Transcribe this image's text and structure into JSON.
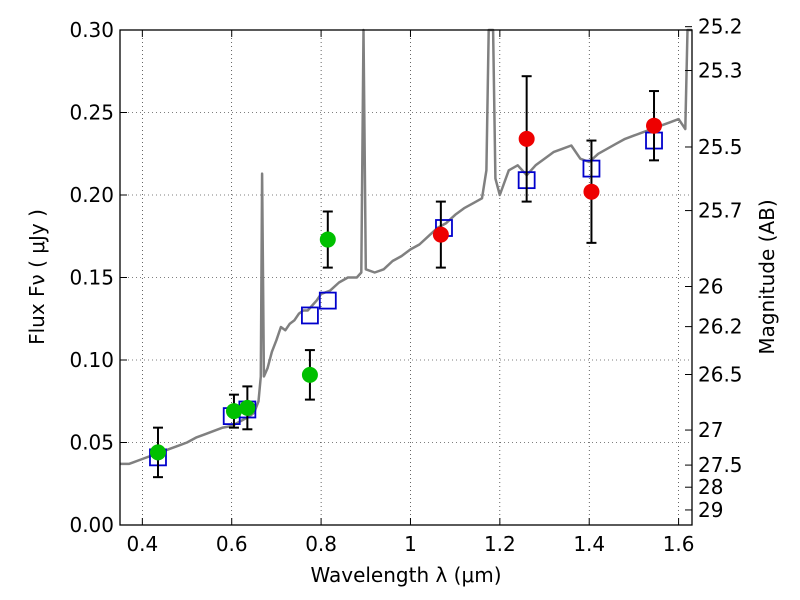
{
  "chart_data": {
    "type": "scatter",
    "xlabel": "Wavelength  λ (μm)",
    "ylabel": "Flux  Fν  ( μJy )",
    "y2label": "Magnitude (AB)",
    "xlim": [
      0.35,
      1.63
    ],
    "ylim": [
      0.0,
      0.3
    ],
    "grid": true,
    "x_ticks": [
      {
        "value": 0.4,
        "label": "0.4"
      },
      {
        "value": 0.6,
        "label": "0.6"
      },
      {
        "value": 0.8,
        "label": "0.8"
      },
      {
        "value": 1.0,
        "label": "1"
      },
      {
        "value": 1.2,
        "label": "1.2"
      },
      {
        "value": 1.4,
        "label": "1.4"
      },
      {
        "value": 1.6,
        "label": "1.6"
      }
    ],
    "y_ticks": [
      {
        "value": 0.0,
        "label": "0.00"
      },
      {
        "value": 0.05,
        "label": "0.05"
      },
      {
        "value": 0.1,
        "label": "0.10"
      },
      {
        "value": 0.15,
        "label": "0.15"
      },
      {
        "value": 0.2,
        "label": "0.20"
      },
      {
        "value": 0.25,
        "label": "0.25"
      },
      {
        "value": 0.3,
        "label": "0.30"
      }
    ],
    "y2_ticks": [
      {
        "value": 25.2,
        "label": "25.2"
      },
      {
        "value": 25.3,
        "label": "25.3"
      },
      {
        "value": 25.5,
        "label": "25.5"
      },
      {
        "value": 25.7,
        "label": "25.7"
      },
      {
        "value": 26.0,
        "label": "26"
      },
      {
        "value": 26.2,
        "label": "26.2"
      },
      {
        "value": 26.5,
        "label": "26.5"
      },
      {
        "value": 27.0,
        "label": "27"
      },
      {
        "value": 27.5,
        "label": "27.5"
      },
      {
        "value": 28.0,
        "label": "28"
      },
      {
        "value": 29.0,
        "label": "29"
      }
    ],
    "model_spectrum": {
      "color": "#808080",
      "points": [
        [
          0.35,
          0.037
        ],
        [
          0.37,
          0.037
        ],
        [
          0.38,
          0.038
        ],
        [
          0.4,
          0.04
        ],
        [
          0.42,
          0.042
        ],
        [
          0.44,
          0.044
        ],
        [
          0.46,
          0.046
        ],
        [
          0.48,
          0.048
        ],
        [
          0.5,
          0.05
        ],
        [
          0.52,
          0.053
        ],
        [
          0.54,
          0.055
        ],
        [
          0.56,
          0.057
        ],
        [
          0.58,
          0.059
        ],
        [
          0.6,
          0.06
        ],
        [
          0.62,
          0.063
        ],
        [
          0.64,
          0.066
        ],
        [
          0.65,
          0.068
        ],
        [
          0.66,
          0.075
        ],
        [
          0.665,
          0.09
        ],
        [
          0.668,
          0.213
        ],
        [
          0.672,
          0.09
        ],
        [
          0.68,
          0.095
        ],
        [
          0.69,
          0.105
        ],
        [
          0.7,
          0.112
        ],
        [
          0.71,
          0.12
        ],
        [
          0.72,
          0.118
        ],
        [
          0.73,
          0.122
        ],
        [
          0.74,
          0.124
        ],
        [
          0.75,
          0.128
        ],
        [
          0.76,
          0.13
        ],
        [
          0.77,
          0.13
        ],
        [
          0.78,
          0.133
        ],
        [
          0.79,
          0.136
        ],
        [
          0.8,
          0.14
        ],
        [
          0.82,
          0.142
        ],
        [
          0.84,
          0.147
        ],
        [
          0.86,
          0.15
        ],
        [
          0.88,
          0.15
        ],
        [
          0.89,
          0.153
        ],
        [
          0.895,
          0.3
        ],
        [
          0.9,
          0.155
        ],
        [
          0.92,
          0.153
        ],
        [
          0.94,
          0.155
        ],
        [
          0.96,
          0.16
        ],
        [
          0.98,
          0.163
        ],
        [
          1.0,
          0.167
        ],
        [
          1.02,
          0.17
        ],
        [
          1.04,
          0.175
        ],
        [
          1.06,
          0.18
        ],
        [
          1.08,
          0.183
        ],
        [
          1.1,
          0.188
        ],
        [
          1.12,
          0.192
        ],
        [
          1.14,
          0.195
        ],
        [
          1.16,
          0.198
        ],
        [
          1.17,
          0.215
        ],
        [
          1.175,
          0.3
        ],
        [
          1.185,
          0.3
        ],
        [
          1.19,
          0.21
        ],
        [
          1.2,
          0.2
        ],
        [
          1.22,
          0.215
        ],
        [
          1.24,
          0.218
        ],
        [
          1.26,
          0.212
        ],
        [
          1.28,
          0.218
        ],
        [
          1.3,
          0.222
        ],
        [
          1.32,
          0.226
        ],
        [
          1.34,
          0.228
        ],
        [
          1.36,
          0.23
        ],
        [
          1.38,
          0.222
        ],
        [
          1.4,
          0.22
        ],
        [
          1.42,
          0.225
        ],
        [
          1.44,
          0.228
        ],
        [
          1.46,
          0.231
        ],
        [
          1.48,
          0.234
        ],
        [
          1.5,
          0.236
        ],
        [
          1.52,
          0.238
        ],
        [
          1.54,
          0.24
        ],
        [
          1.56,
          0.242
        ],
        [
          1.58,
          0.244
        ],
        [
          1.6,
          0.246
        ],
        [
          1.615,
          0.24
        ],
        [
          1.62,
          0.3
        ],
        [
          1.63,
          0.3
        ]
      ]
    },
    "model_bands": {
      "color": "#0000cc",
      "marker": "open-square",
      "points": [
        {
          "x": 0.435,
          "y": 0.041
        },
        {
          "x": 0.6,
          "y": 0.066
        },
        {
          "x": 0.635,
          "y": 0.07
        },
        {
          "x": 0.775,
          "y": 0.127
        },
        {
          "x": 0.815,
          "y": 0.136
        },
        {
          "x": 1.075,
          "y": 0.18
        },
        {
          "x": 1.26,
          "y": 0.209
        },
        {
          "x": 1.405,
          "y": 0.216
        },
        {
          "x": 1.545,
          "y": 0.233
        }
      ]
    },
    "observed_optical": {
      "color": "#00c000",
      "marker": "filled-circle",
      "points": [
        {
          "x": 0.435,
          "y": 0.044,
          "err": 0.015
        },
        {
          "x": 0.605,
          "y": 0.069,
          "err": 0.01
        },
        {
          "x": 0.635,
          "y": 0.071,
          "err": 0.013
        },
        {
          "x": 0.775,
          "y": 0.091,
          "err": 0.015
        },
        {
          "x": 0.815,
          "y": 0.173,
          "err": 0.017
        }
      ]
    },
    "observed_nir": {
      "color": "#ee0000",
      "marker": "filled-circle",
      "points": [
        {
          "x": 1.068,
          "y": 0.176,
          "err": 0.02
        },
        {
          "x": 1.26,
          "y": 0.234,
          "err": 0.038
        },
        {
          "x": 1.405,
          "y": 0.202,
          "err": 0.031
        },
        {
          "x": 1.545,
          "y": 0.242,
          "err": 0.021
        }
      ]
    }
  }
}
